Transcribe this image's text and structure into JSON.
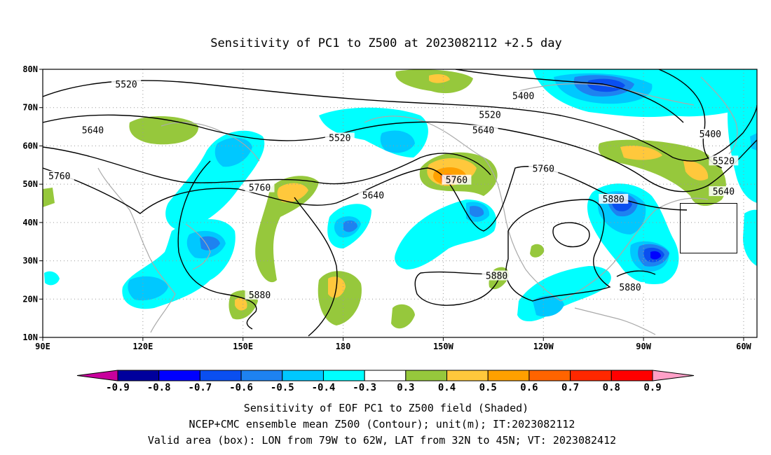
{
  "title": "Sensitivity of PC1 to Z500 at 2023082112 +2.5 day",
  "map": {
    "lon_range": [
      90,
      304
    ],
    "lat_range": [
      10,
      80
    ],
    "lat_ticks": [
      {
        "lat": 80,
        "label": "80N"
      },
      {
        "lat": 70,
        "label": "70N"
      },
      {
        "lat": 60,
        "label": "60N"
      },
      {
        "lat": 50,
        "label": "50N"
      },
      {
        "lat": 40,
        "label": "40N"
      },
      {
        "lat": 30,
        "label": "30N"
      },
      {
        "lat": 20,
        "label": "20N"
      },
      {
        "lat": 10,
        "label": "10N"
      }
    ],
    "lon_ticks": [
      {
        "lon": 90,
        "label": "90E"
      },
      {
        "lon": 120,
        "label": "120E"
      },
      {
        "lon": 150,
        "label": "150E"
      },
      {
        "lon": 180,
        "label": "180"
      },
      {
        "lon": 210,
        "label": "150W"
      },
      {
        "lon": 240,
        "label": "120W"
      },
      {
        "lon": 270,
        "label": "90W"
      },
      {
        "lon": 300,
        "label": "60W"
      }
    ],
    "grid": "dotted",
    "valid_box": {
      "lon_min": 281,
      "lon_max": 298,
      "lat_min": 32,
      "lat_max": 45
    },
    "contour_labels": [
      {
        "text": "5520",
        "lon": 115,
        "lat": 76
      },
      {
        "text": "5400",
        "lon": 234,
        "lat": 73
      },
      {
        "text": "5520",
        "lon": 224,
        "lat": 68
      },
      {
        "text": "5640",
        "lon": 105,
        "lat": 64
      },
      {
        "text": "5640",
        "lon": 222,
        "lat": 64
      },
      {
        "text": "5520",
        "lon": 179,
        "lat": 62
      },
      {
        "text": "5400",
        "lon": 290,
        "lat": 63
      },
      {
        "text": "5520",
        "lon": 294,
        "lat": 56
      },
      {
        "text": "5760",
        "lon": 95,
        "lat": 52
      },
      {
        "text": "5760",
        "lon": 240,
        "lat": 54
      },
      {
        "text": "5760",
        "lon": 214,
        "lat": 51
      },
      {
        "text": "5760",
        "lon": 155,
        "lat": 49
      },
      {
        "text": "5640",
        "lon": 189,
        "lat": 47
      },
      {
        "text": "5640",
        "lon": 294,
        "lat": 48
      },
      {
        "text": "5880",
        "lon": 261,
        "lat": 46
      },
      {
        "text": "5880",
        "lon": 226,
        "lat": 26
      },
      {
        "text": "5880",
        "lon": 266,
        "lat": 23
      },
      {
        "text": "5880",
        "lon": 155,
        "lat": 21
      }
    ]
  },
  "colorbar": {
    "labels": [
      "-0.9",
      "-0.8",
      "-0.7",
      "-0.6",
      "-0.5",
      "-0.4",
      "-0.3",
      "0.3",
      "0.4",
      "0.5",
      "0.6",
      "0.7",
      "0.8",
      "0.9"
    ],
    "bins": [
      "#00009c",
      "#0000ff",
      "#0a4ff0",
      "#1e82f0",
      "#00c8ff",
      "#00ffff",
      "#ffffff",
      "#96c83c",
      "#ffc83c",
      "#ffa000",
      "#ff6400",
      "#ff2800",
      "#ff0000"
    ],
    "left_arrow": "#c8009c",
    "right_arrow": "#ffa0c8"
  },
  "caption": [
    "Sensitivity of EOF PC1 to Z500 field (Shaded)",
    "NCEP+CMC ensemble mean Z500 (Contour); unit(m); IT:2023082112",
    "Valid area (box): LON from 79W to 62W, LAT from 32N to 45N; VT: 2023082412"
  ]
}
